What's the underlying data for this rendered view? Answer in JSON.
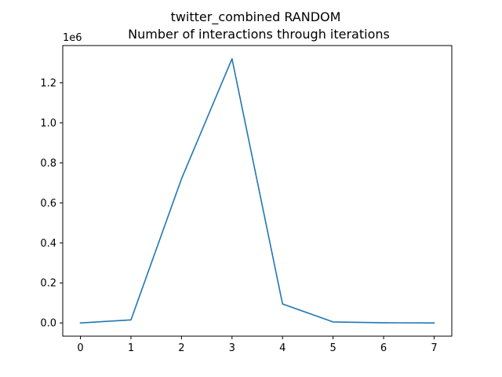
{
  "chart_data": {
    "type": "line",
    "title": "twitter_combined RANDOM",
    "subtitle": "Number of interactions through iterations",
    "xlabel": "",
    "ylabel": "",
    "y_offset_label": "1e6",
    "x": [
      0,
      1,
      2,
      3,
      4,
      5,
      6,
      7
    ],
    "series": [
      {
        "values": [
          0.0,
          0.015,
          0.72,
          1.32,
          0.095,
          0.005,
          0.001,
          0.0
        ],
        "color": "#1f77b4"
      }
    ],
    "xlim": [
      -0.35,
      7.35
    ],
    "ylim": [
      -0.066,
      1.386
    ],
    "xticks": [
      0,
      1,
      2,
      3,
      4,
      5,
      6,
      7
    ],
    "xtick_labels": [
      "0",
      "1",
      "2",
      "3",
      "4",
      "5",
      "6",
      "7"
    ],
    "yticks": [
      0.0,
      0.2,
      0.4,
      0.6,
      0.8,
      1.0,
      1.2
    ],
    "ytick_labels": [
      "0.0",
      "0.2",
      "0.4",
      "0.6",
      "0.8",
      "1.0",
      "1.2"
    ],
    "grid": false,
    "legend": "none"
  }
}
